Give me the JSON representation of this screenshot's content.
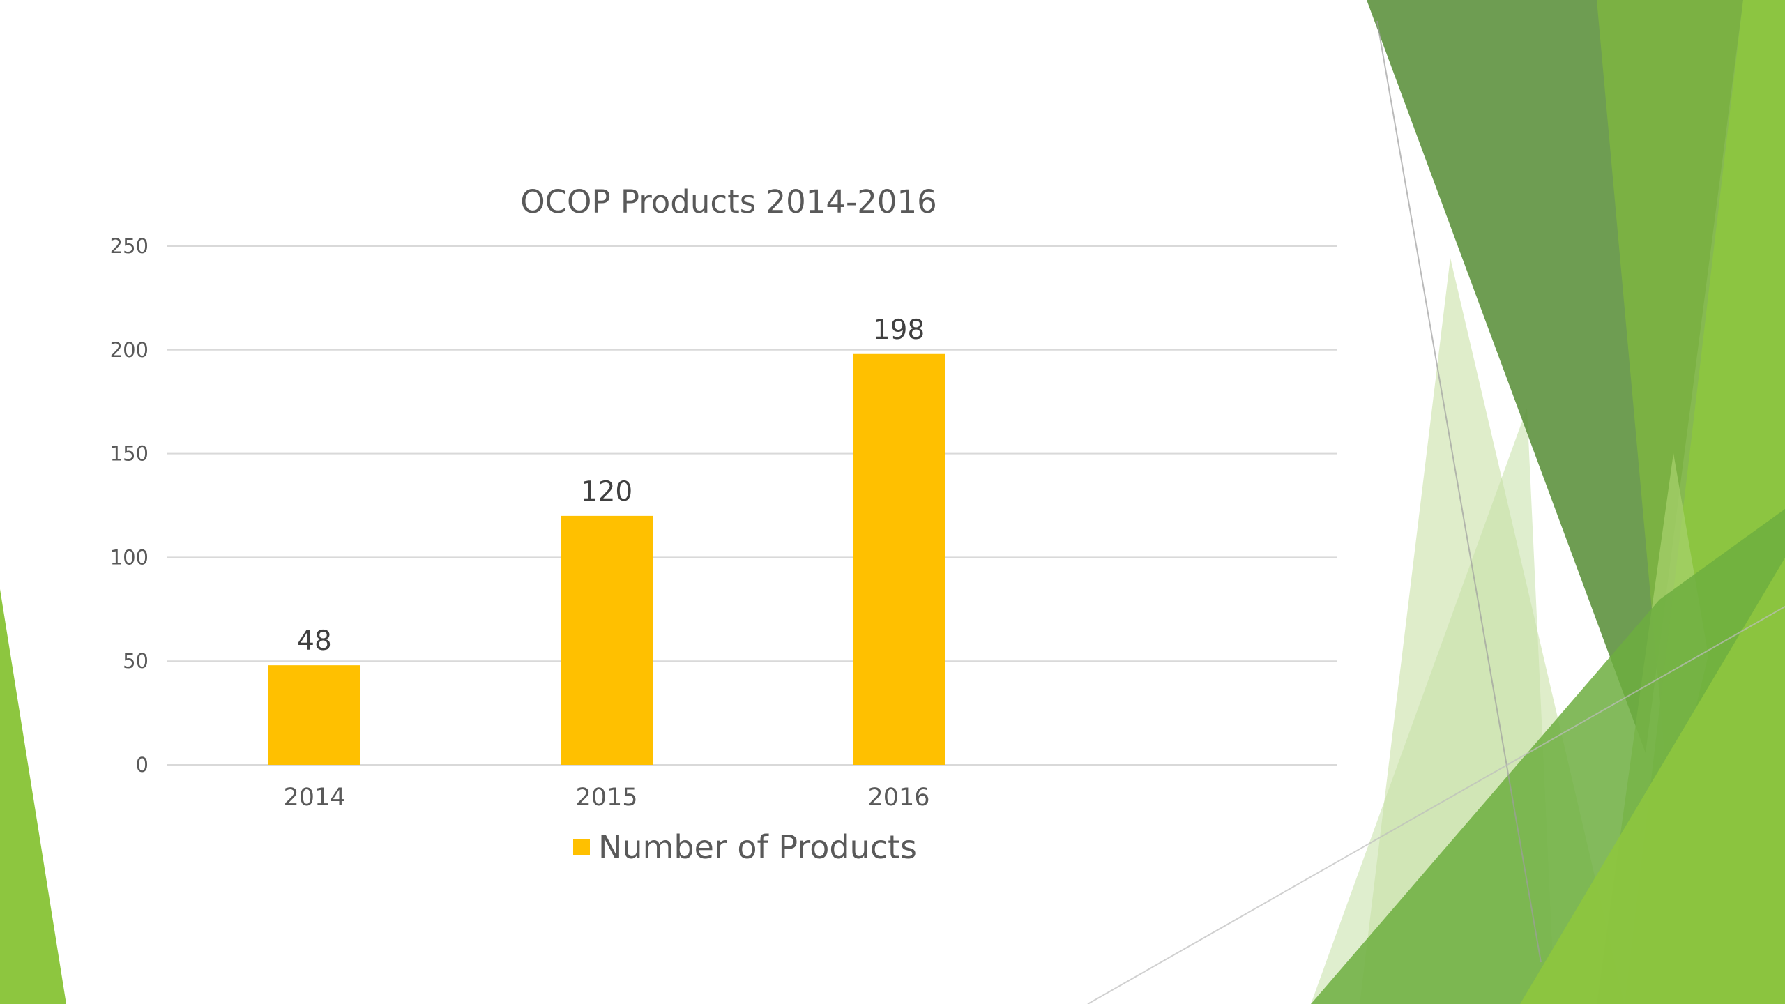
{
  "colors": {
    "bar": "#FFC000",
    "green_dark": "#5A8F3A",
    "green_mid": "#7CB342",
    "green_bright": "#8DC63F",
    "green_light": "#C5E0A5"
  },
  "chart_data": {
    "type": "bar",
    "title": "OCOP Products 2014-2016",
    "xlabel": "",
    "ylabel": "",
    "categories": [
      "2014",
      "2015",
      "2016"
    ],
    "series": [
      {
        "name": "Number of Products",
        "values": [
          48,
          120,
          198
        ],
        "color": "#FFC000"
      }
    ],
    "ylim": [
      0,
      250
    ],
    "yticks": [
      0,
      50,
      100,
      150,
      200,
      250
    ],
    "data_labels": [
      "48",
      "120",
      "198"
    ],
    "grid": true,
    "legend": "bottom"
  }
}
